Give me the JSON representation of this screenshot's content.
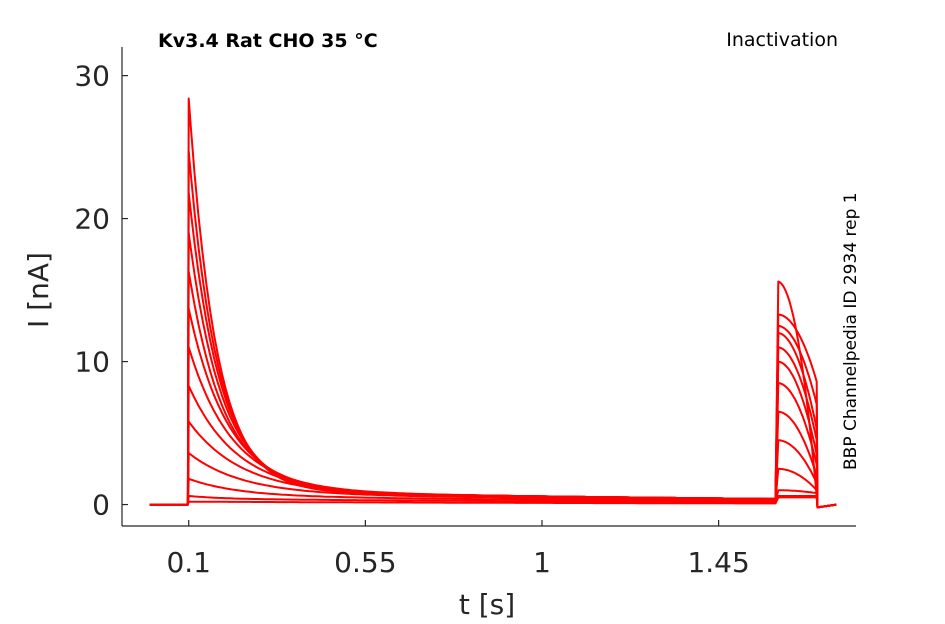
{
  "chart_data": {
    "type": "line",
    "title": "Kv3.4  Rat  CHO  35 °C",
    "subtitle": "Inactivation",
    "side_label": "BBP Channelpedia ID 2934 rep 1",
    "xlabel": "t [s]",
    "ylabel": "I [nA]",
    "xlim": [
      -0.07,
      1.8
    ],
    "ylim": [
      -1.5,
      32
    ],
    "xticks": [
      0.1,
      0.55,
      1,
      1.45
    ],
    "xtick_labels": [
      "0.1",
      "0.55",
      "1",
      "1.45"
    ],
    "yticks": [
      0,
      10,
      20,
      30
    ],
    "ytick_labels": [
      "0",
      "10",
      "20",
      "30"
    ],
    "grid": false,
    "color": "#ff0000",
    "protocol": {
      "baseline_start": 0.0,
      "pulse_start": 0.1,
      "pulse_end": 1.6,
      "test_end": 1.7,
      "trace_end": 1.75
    },
    "series": [
      {
        "peak": 0.2,
        "tau": 0.05,
        "tail": 0.2,
        "test": 0.5,
        "test_end": 0.5
      },
      {
        "peak": 0.6,
        "tau": 0.08,
        "tail": 0.4,
        "test": 0.6,
        "test_end": 0.6
      },
      {
        "peak": 1.8,
        "tau": 0.12,
        "tail": 0.6,
        "test": 1.0,
        "test_end": 0.8
      },
      {
        "peak": 3.6,
        "tau": 0.13,
        "tail": 0.8,
        "test": 2.5,
        "test_end": 1.0
      },
      {
        "peak": 5.8,
        "tau": 0.13,
        "tail": 0.9,
        "test": 4.5,
        "test_end": 1.5
      },
      {
        "peak": 8.3,
        "tau": 0.12,
        "tail": 0.95,
        "test": 6.5,
        "test_end": 2.0
      },
      {
        "peak": 11.0,
        "tau": 0.11,
        "tail": 1.0,
        "test": 8.5,
        "test_end": 2.8
      },
      {
        "peak": 13.7,
        "tau": 0.1,
        "tail": 1.0,
        "test": 10.0,
        "test_end": 3.5
      },
      {
        "peak": 16.3,
        "tau": 0.09,
        "tail": 1.0,
        "test": 11.0,
        "test_end": 4.5
      },
      {
        "peak": 19.0,
        "tau": 0.085,
        "tail": 1.0,
        "test": 12.0,
        "test_end": 5.3
      },
      {
        "peak": 21.8,
        "tau": 0.08,
        "tail": 1.0,
        "test": 12.5,
        "test_end": 7.0
      },
      {
        "peak": 24.7,
        "tau": 0.075,
        "tail": 1.0,
        "test": 13.3,
        "test_end": 8.6
      },
      {
        "peak": 28.4,
        "tau": 0.07,
        "tail": 1.0,
        "test": 15.6,
        "test_end": 0.6
      }
    ]
  }
}
